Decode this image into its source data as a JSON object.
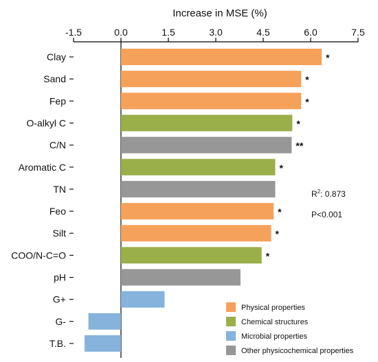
{
  "chart_data": {
    "type": "bar",
    "orientation": "horizontal",
    "xlabel": "Increase in MSE (%)",
    "xlim": [
      -1.5,
      7.5
    ],
    "xticks": [
      "-1.5",
      "0.0",
      "1.5",
      "3.0",
      "4.5",
      "6.0",
      "7.5"
    ],
    "categories": [
      "Clay",
      "Sand",
      "Fep",
      "O-alkyl C",
      "C/N",
      "Aromatic C",
      "TN",
      "Feo",
      "Silt",
      "COO/N-C=O",
      "pH",
      "G+",
      "G-",
      "T.B."
    ],
    "values": [
      6.35,
      5.7,
      5.7,
      5.42,
      5.4,
      4.88,
      4.88,
      4.83,
      4.75,
      4.45,
      3.78,
      1.38,
      -1.03,
      -1.15
    ],
    "groups": [
      "physical",
      "physical",
      "physical",
      "chemical",
      "other",
      "chemical",
      "other",
      "physical",
      "physical",
      "chemical",
      "other",
      "microbial",
      "microbial",
      "microbial"
    ],
    "significance": [
      "*",
      "*",
      "*",
      "*",
      "**",
      "*",
      "",
      "*",
      "*",
      "*",
      "",
      "",
      "",
      ""
    ],
    "legend": [
      {
        "key": "physical",
        "label": "Physical properties",
        "color": "#F6A15A"
      },
      {
        "key": "chemical",
        "label": "Chemical structures",
        "color": "#9AAF4A"
      },
      {
        "key": "microbial",
        "label": "Microbial properties",
        "color": "#85B3DB"
      },
      {
        "key": "other",
        "label": "Other physicochemical properties",
        "color": "#979797"
      }
    ],
    "legend_position": "bottom-right",
    "annotations": {
      "r2_prefix": "R",
      "r2_sup": "2",
      "r2_value": ": 0.873",
      "p_value": "P<0.001"
    }
  }
}
